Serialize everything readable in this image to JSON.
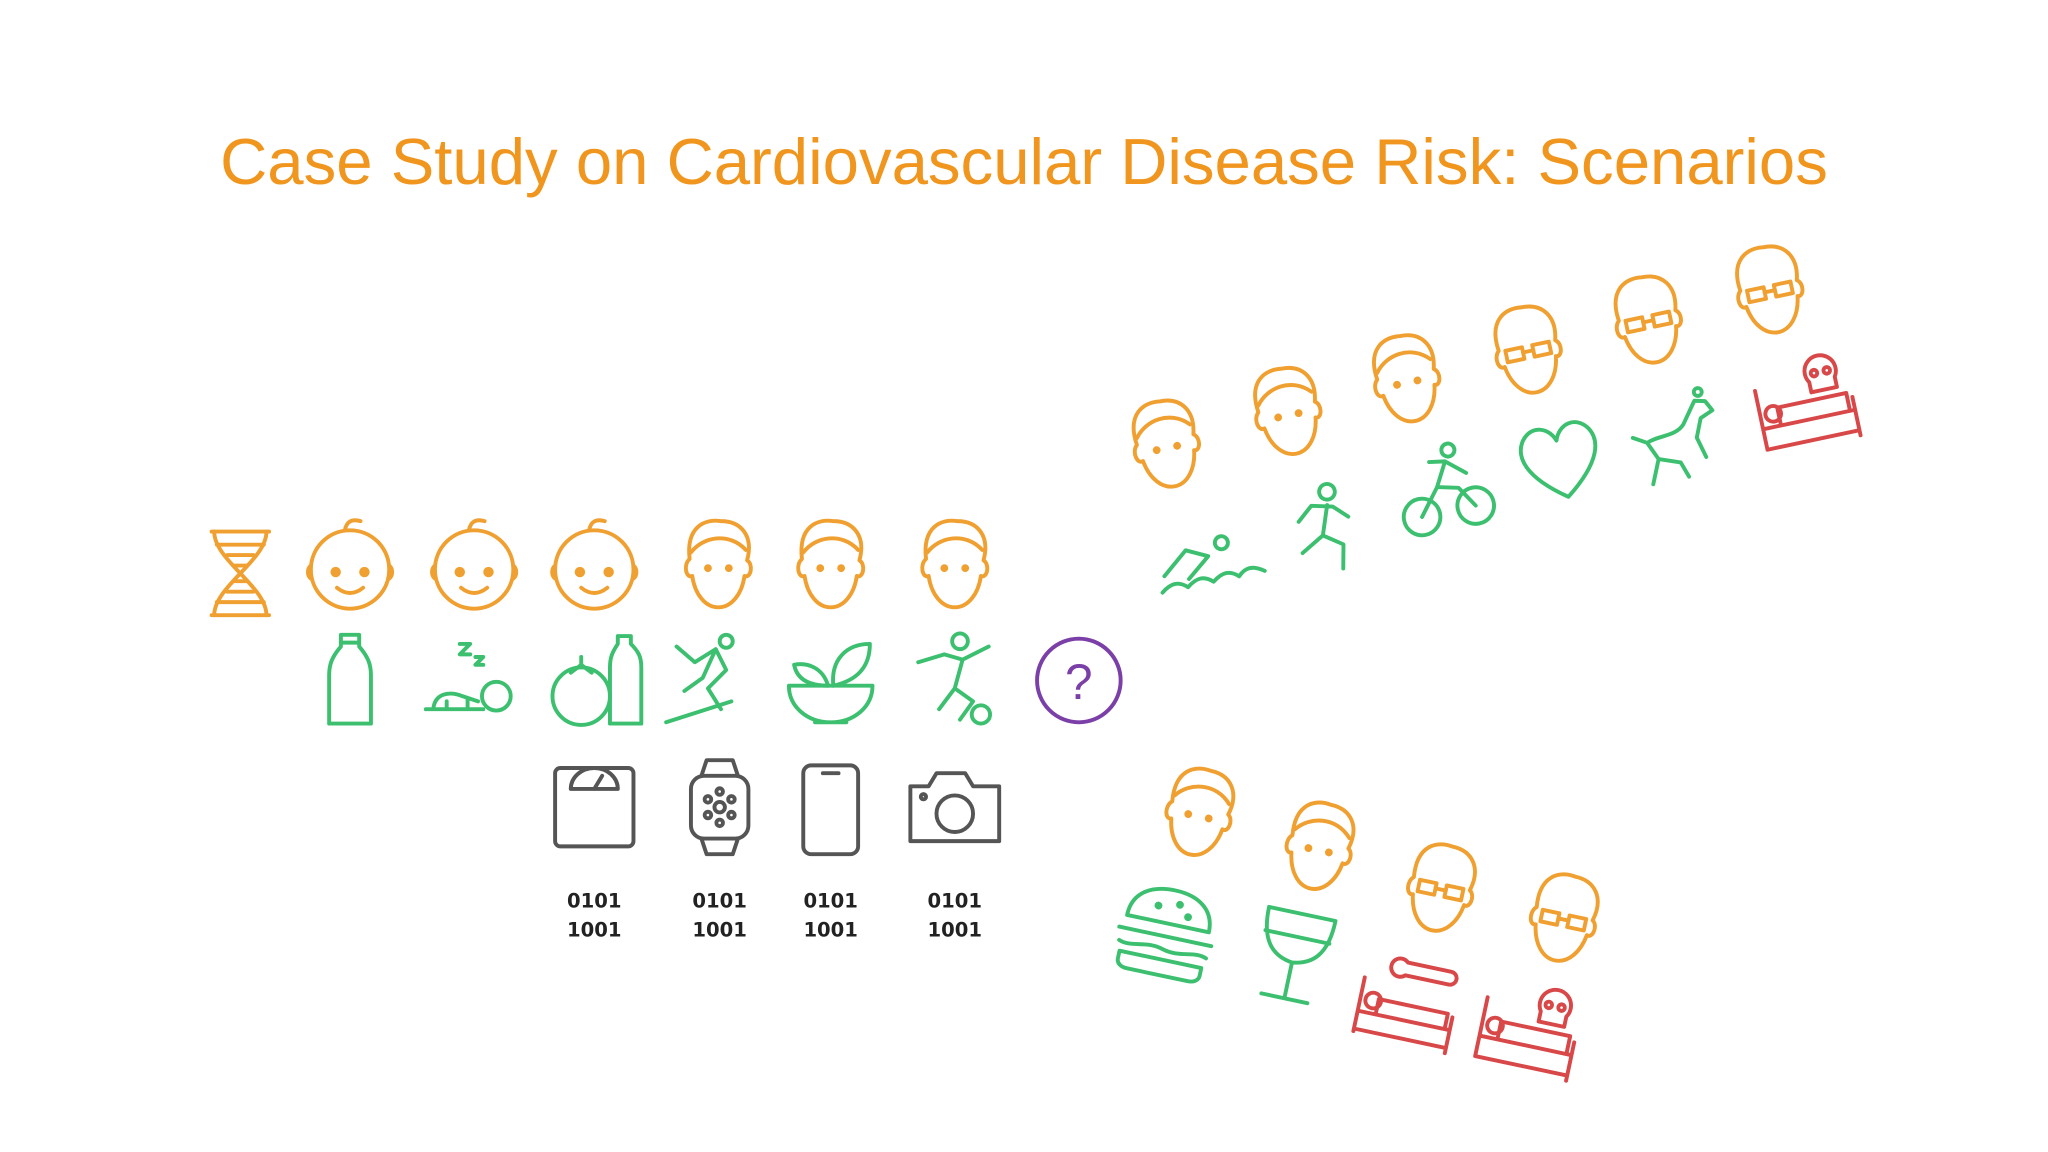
{
  "title": "Case Study on Cardiovascular Disease Risk: Scenarios",
  "unknown_marker": "?",
  "device_codes": [
    [
      "0101",
      "1001"
    ],
    [
      "0101",
      "1001"
    ],
    [
      "0101",
      "1001"
    ],
    [
      "0101",
      "1001"
    ]
  ]
}
